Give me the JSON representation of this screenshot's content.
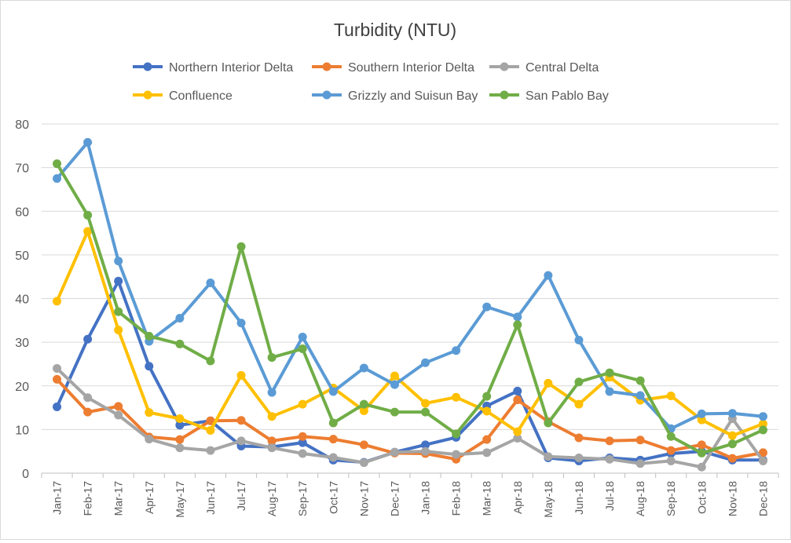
{
  "chart_data": {
    "type": "line",
    "title": "Turbidity (NTU)",
    "xlabel": "",
    "ylabel": "",
    "ylim": [
      0,
      80
    ],
    "yticks": [
      0,
      10,
      20,
      30,
      40,
      50,
      60,
      70,
      80
    ],
    "grid": true,
    "legend_position": "top",
    "categories": [
      "Jan-17",
      "Feb-17",
      "Mar-17",
      "Apr-17",
      "May-17",
      "Jun-17",
      "Jul-17",
      "Aug-17",
      "Sep-17",
      "Oct-17",
      "Nov-17",
      "Dec-17",
      "Jan-18",
      "Feb-18",
      "Mar-18",
      "Apr-18",
      "May-18",
      "Jun-18",
      "Jul-18",
      "Aug-18",
      "Sep-18",
      "Oct-18",
      "Nov-18",
      "Dec-18"
    ],
    "series": [
      {
        "name": "Northern Interior Delta",
        "color": "#4472c4",
        "values": [
          15.2,
          30.7,
          44.0,
          24.5,
          11.0,
          12.0,
          6.2,
          6.0,
          7.0,
          3.0,
          2.5,
          4.8,
          6.5,
          8.2,
          15.4,
          18.8,
          3.5,
          2.8,
          3.5,
          3.0,
          4.5,
          5.0,
          3.0,
          3.0
        ]
      },
      {
        "name": "Southern Interior Delta",
        "color": "#ed7d31",
        "values": [
          21.5,
          14.0,
          15.3,
          8.3,
          7.7,
          12.0,
          12.1,
          7.4,
          8.4,
          7.8,
          6.5,
          4.6,
          4.5,
          3.2,
          7.7,
          16.8,
          11.8,
          8.1,
          7.4,
          7.6,
          5.2,
          6.5,
          3.4,
          4.7
        ]
      },
      {
        "name": "Central Delta",
        "color": "#a5a5a5",
        "values": [
          24.0,
          17.3,
          13.3,
          7.8,
          5.8,
          5.2,
          7.4,
          5.8,
          4.5,
          3.6,
          2.4,
          4.8,
          5.0,
          4.3,
          4.7,
          8.0,
          3.8,
          3.5,
          3.2,
          2.2,
          2.8,
          1.4,
          12.5,
          2.8
        ]
      },
      {
        "name": "Confluence",
        "color": "#ffc000",
        "values": [
          39.4,
          55.4,
          32.8,
          13.9,
          12.5,
          9.8,
          22.4,
          13.0,
          15.8,
          19.5,
          14.3,
          22.3,
          16.0,
          17.4,
          14.2,
          9.5,
          20.6,
          15.8,
          22.0,
          16.7,
          17.7,
          12.2,
          8.6,
          11.3
        ]
      },
      {
        "name": "Grizzly and Suisun Bay",
        "color": "#5b9bd5",
        "values": [
          67.5,
          75.8,
          48.6,
          30.2,
          35.5,
          43.6,
          34.4,
          18.5,
          31.2,
          18.7,
          24.1,
          20.3,
          25.3,
          28.1,
          38.1,
          35.8,
          45.3,
          30.5,
          18.7,
          17.8,
          10.2,
          13.6,
          13.7,
          13.0
        ]
      },
      {
        "name": "San Pablo Bay",
        "color": "#70ad47",
        "values": [
          70.9,
          59.1,
          37.0,
          31.4,
          29.6,
          25.7,
          51.9,
          26.5,
          28.5,
          11.5,
          15.8,
          14.0,
          14.0,
          9.0,
          17.6,
          34.0,
          11.5,
          20.9,
          23.0,
          21.2,
          8.4,
          4.6,
          6.7,
          9.9
        ]
      }
    ]
  }
}
